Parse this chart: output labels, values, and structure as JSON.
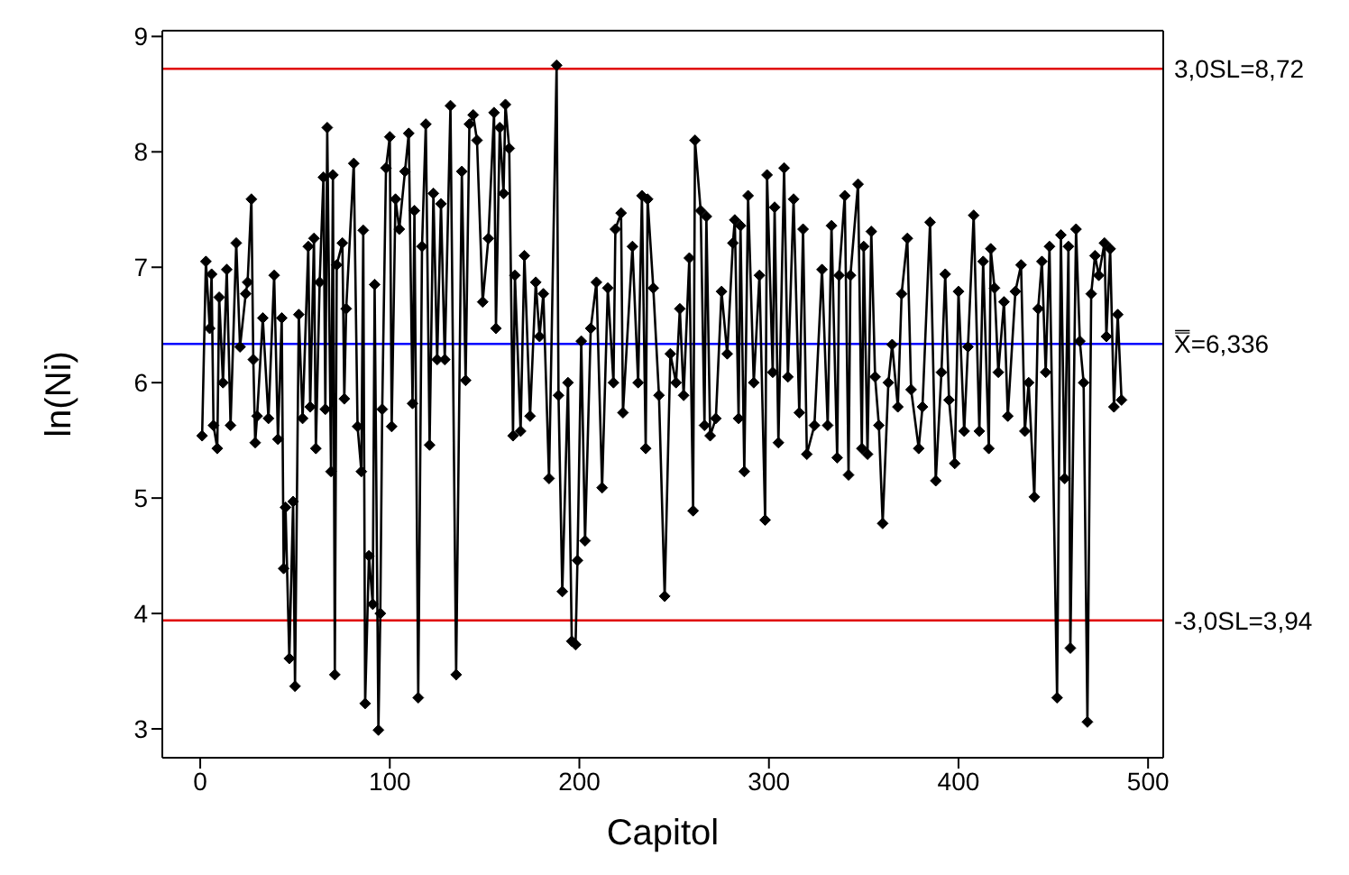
{
  "chart_data": {
    "type": "line",
    "xlabel": "Capitol",
    "ylabel": "ln(Ni)",
    "xlim": [
      -20,
      508
    ],
    "xticks": [
      0,
      100,
      200,
      300,
      400,
      500
    ],
    "ylim": [
      2.75,
      9.05
    ],
    "yticks": [
      3,
      4,
      5,
      6,
      7,
      8,
      9
    ],
    "grid": false,
    "legend": false,
    "marker": "diamond",
    "line_style": "solid",
    "series": [
      {
        "color": "#000000",
        "x": [
          1,
          3,
          5,
          6,
          7,
          9,
          10,
          12,
          14,
          16,
          19,
          21,
          24,
          25,
          27,
          28,
          29,
          30,
          33,
          36,
          39,
          41,
          43,
          44,
          45,
          47,
          49,
          50,
          52,
          54,
          57,
          58,
          60,
          61,
          63,
          65,
          66,
          67,
          69,
          70,
          71,
          72,
          75,
          76,
          77,
          81,
          83,
          85,
          86,
          87,
          89,
          91,
          92,
          94,
          95,
          96,
          98,
          100,
          101,
          103,
          105,
          108,
          110,
          112,
          113,
          115,
          117,
          119,
          121,
          123,
          125,
          127,
          129,
          132,
          135,
          138,
          140,
          142,
          144,
          146,
          149,
          152,
          155,
          156,
          158,
          160,
          161,
          163,
          165,
          166,
          169,
          171,
          174,
          177,
          179,
          181,
          184,
          188,
          189,
          191,
          194,
          196,
          198,
          199,
          201,
          203,
          206,
          209,
          212,
          215,
          218,
          219,
          222,
          223,
          228,
          231,
          233,
          235,
          236,
          239,
          242,
          245,
          248,
          251,
          253,
          255,
          258,
          260,
          261,
          264,
          266,
          267,
          269,
          272,
          275,
          278,
          281,
          282,
          284,
          285,
          287,
          289,
          292,
          295,
          298,
          299,
          302,
          303,
          305,
          308,
          310,
          313,
          316,
          318,
          320,
          324,
          328,
          331,
          333,
          336,
          337,
          340,
          342,
          343,
          347,
          349,
          350,
          352,
          354,
          356,
          358,
          360,
          363,
          365,
          368,
          370,
          373,
          375,
          379,
          381,
          385,
          388,
          391,
          393,
          395,
          398,
          400,
          403,
          405,
          408,
          411,
          413,
          416,
          417,
          419,
          421,
          424,
          426,
          430,
          433,
          435,
          437,
          440,
          442,
          444,
          446,
          448,
          452,
          454,
          456,
          458,
          459,
          462,
          464,
          466,
          468,
          470,
          472,
          474,
          477,
          478,
          480,
          482,
          484,
          486
        ],
        "values": [
          5.54,
          7.05,
          6.47,
          6.94,
          5.63,
          5.43,
          6.74,
          6.0,
          6.98,
          5.63,
          7.21,
          6.31,
          6.77,
          6.87,
          7.59,
          6.2,
          5.48,
          5.71,
          6.56,
          5.69,
          6.93,
          5.51,
          6.56,
          4.39,
          4.92,
          3.61,
          4.97,
          3.37,
          6.59,
          5.69,
          7.18,
          5.79,
          7.25,
          5.43,
          6.87,
          7.78,
          5.77,
          8.21,
          5.23,
          7.8,
          3.47,
          7.02,
          7.21,
          5.86,
          6.64,
          7.9,
          5.62,
          5.23,
          7.32,
          3.22,
          4.5,
          4.08,
          6.85,
          2.99,
          4.0,
          5.77,
          7.86,
          8.13,
          5.62,
          7.59,
          7.33,
          7.83,
          8.16,
          5.82,
          7.49,
          3.27,
          7.18,
          8.24,
          5.46,
          7.64,
          6.2,
          7.55,
          6.2,
          8.4,
          3.47,
          7.83,
          6.02,
          8.24,
          8.32,
          8.1,
          6.7,
          7.25,
          8.34,
          6.47,
          8.21,
          7.64,
          8.41,
          8.03,
          5.54,
          6.93,
          5.58,
          7.1,
          5.71,
          6.87,
          6.4,
          6.77,
          5.17,
          8.75,
          5.89,
          4.19,
          6.0,
          3.76,
          3.73,
          4.46,
          6.36,
          4.63,
          6.47,
          6.87,
          5.09,
          6.82,
          6.0,
          7.33,
          7.47,
          5.74,
          7.18,
          6.0,
          7.62,
          5.43,
          7.59,
          6.82,
          5.89,
          4.15,
          6.25,
          6.0,
          6.64,
          5.89,
          7.08,
          4.89,
          8.1,
          7.49,
          5.63,
          7.44,
          5.54,
          5.69,
          6.79,
          6.25,
          7.21,
          7.41,
          5.69,
          7.36,
          5.23,
          7.62,
          6.0,
          6.93,
          4.81,
          7.8,
          6.09,
          7.52,
          5.48,
          7.86,
          6.05,
          7.59,
          5.74,
          7.33,
          5.38,
          5.63,
          6.98,
          5.63,
          7.36,
          5.35,
          6.93,
          7.62,
          5.2,
          6.93,
          7.72,
          5.43,
          7.18,
          5.38,
          7.31,
          6.05,
          5.63,
          4.78,
          6.0,
          6.33,
          5.79,
          6.77,
          7.25,
          5.94,
          5.43,
          5.79,
          7.39,
          5.15,
          6.09,
          6.94,
          5.85,
          5.3,
          6.79,
          5.58,
          6.31,
          7.45,
          5.58,
          7.05,
          5.43,
          7.16,
          6.82,
          6.09,
          6.7,
          5.71,
          6.79,
          7.02,
          5.58,
          6.0,
          5.01,
          6.64,
          7.05,
          6.09,
          7.18,
          3.27,
          7.28,
          5.17,
          7.18,
          3.7,
          7.33,
          6.36,
          6.0,
          3.06,
          6.77,
          7.1,
          6.93,
          7.21,
          6.4,
          7.16,
          5.79,
          6.59,
          5.85
        ]
      }
    ],
    "ref_lines": [
      {
        "axis": "y",
        "value": 8.72,
        "label": "3,0SL=8,72",
        "color": "#e00000"
      },
      {
        "axis": "y",
        "value": 6.336,
        "label": "X̿=6,336",
        "color": "#0000ff"
      },
      {
        "axis": "y",
        "value": 3.94,
        "label": "-3,0SL=3,94",
        "color": "#e00000"
      }
    ]
  }
}
